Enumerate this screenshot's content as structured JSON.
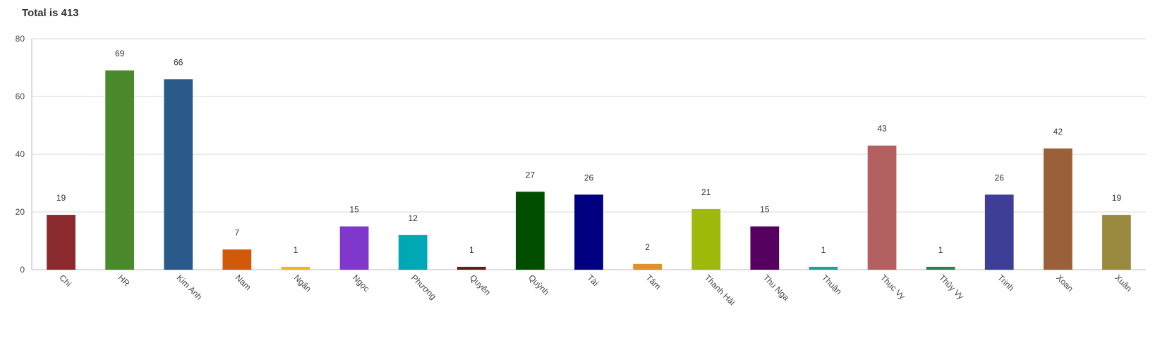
{
  "chart_data": {
    "type": "bar",
    "title": "Total is 413",
    "xlabel": "",
    "ylabel": "",
    "ylim": [
      0,
      80
    ],
    "yticks": [
      0,
      20,
      40,
      60,
      80
    ],
    "grid": true,
    "legend": "none",
    "categories": [
      "Chi",
      "HR",
      "Kim Anh",
      "Nam",
      "Ngân",
      "Ngọc",
      "Phương",
      "Quyên",
      "Quỳnh",
      "Tài",
      "Tâm",
      "Thanh Hải",
      "Thu Nga",
      "Thuận",
      "Thục Vy",
      "Thủy Vy",
      "Trinh",
      "Xoan",
      "Xuân"
    ],
    "values": [
      19,
      69,
      66,
      7,
      1,
      15,
      12,
      1,
      27,
      26,
      2,
      21,
      15,
      1,
      43,
      1,
      26,
      42,
      19
    ],
    "colors": [
      "#8B2A2E",
      "#4A8A2C",
      "#2A5A8A",
      "#D05A0A",
      "#E8B923",
      "#8038CC",
      "#00A7B5",
      "#5E1F1F",
      "#004D00",
      "#000080",
      "#E0902E",
      "#9FB90A",
      "#560060",
      "#17A59A",
      "#B56060",
      "#2E7D54",
      "#3E3E96",
      "#9A603A",
      "#9A8A40"
    ]
  }
}
